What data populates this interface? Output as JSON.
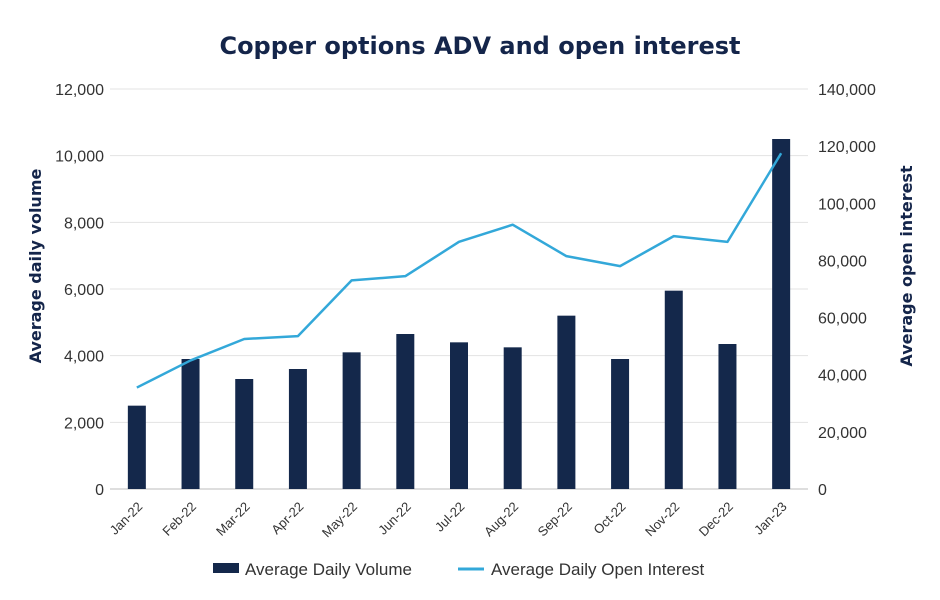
{
  "chart_data": {
    "type": "bar",
    "title": "Copper options ADV and open interest",
    "ylabel": "Average daily volume",
    "y2label": "Average open interest",
    "ylim": [
      0,
      12000
    ],
    "y2lim": [
      0,
      140000
    ],
    "yticks": [
      "0",
      "2,000",
      "4,000",
      "6,000",
      "8,000",
      "10,000",
      "12,000"
    ],
    "y2ticks": [
      "0",
      "20,000",
      "40,000",
      "60,000",
      "80,000",
      "100,000",
      "120,000",
      "140,000"
    ],
    "categories": [
      "Jan-22",
      "Feb-22",
      "Mar-22",
      "Apr-22",
      "May-22",
      "Jun-22",
      "Jul-22",
      "Aug-22",
      "Sep-22",
      "Oct-22",
      "Nov-22",
      "Dec-22",
      "Jan-23"
    ],
    "series": [
      {
        "name": "Average Daily Volume",
        "type": "bar",
        "axis": "left",
        "color": "#14284b",
        "values": [
          2500,
          3900,
          3300,
          3600,
          4100,
          4650,
          4400,
          4250,
          5200,
          3900,
          5950,
          4350,
          10500
        ]
      },
      {
        "name": "Average Daily Open Interest",
        "type": "line",
        "axis": "right",
        "color": "#33a8d9",
        "values": [
          35500,
          45000,
          52500,
          53500,
          73000,
          74500,
          86500,
          92500,
          81500,
          78000,
          88500,
          86500,
          117500
        ]
      }
    ],
    "grid": true,
    "legend_position": "bottom"
  }
}
